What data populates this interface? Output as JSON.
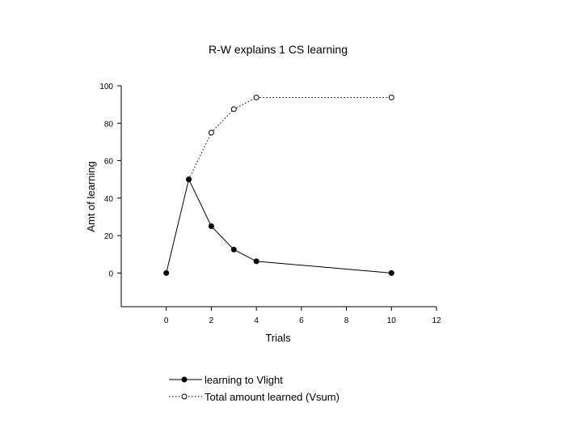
{
  "chart_data": {
    "type": "line",
    "title": "R-W explains 1 CS learning",
    "xlabel": "Trials",
    "ylabel": "Amt of learning",
    "xlim": [
      -2,
      12
    ],
    "ylim": [
      -18,
      100
    ],
    "xticks": [
      0,
      2,
      4,
      6,
      8,
      10,
      12
    ],
    "yticks": [
      0,
      20,
      40,
      60,
      80,
      100
    ],
    "grid": false,
    "legend_position": "bottom",
    "series": [
      {
        "name": "learning to Vlight",
        "style": "solid",
        "marker": "filled-circle",
        "color": "#000000",
        "x": [
          0,
          1,
          2,
          3,
          4,
          10
        ],
        "y": [
          0,
          50,
          25,
          12.5,
          6.25,
          0
        ]
      },
      {
        "name": "Total amount learned (Vsum)",
        "style": "dotted",
        "marker": "open-circle",
        "color": "#000000",
        "x": [
          1,
          2,
          3,
          4,
          10
        ],
        "y": [
          50,
          75,
          87.5,
          93.75,
          93.75
        ]
      }
    ]
  }
}
